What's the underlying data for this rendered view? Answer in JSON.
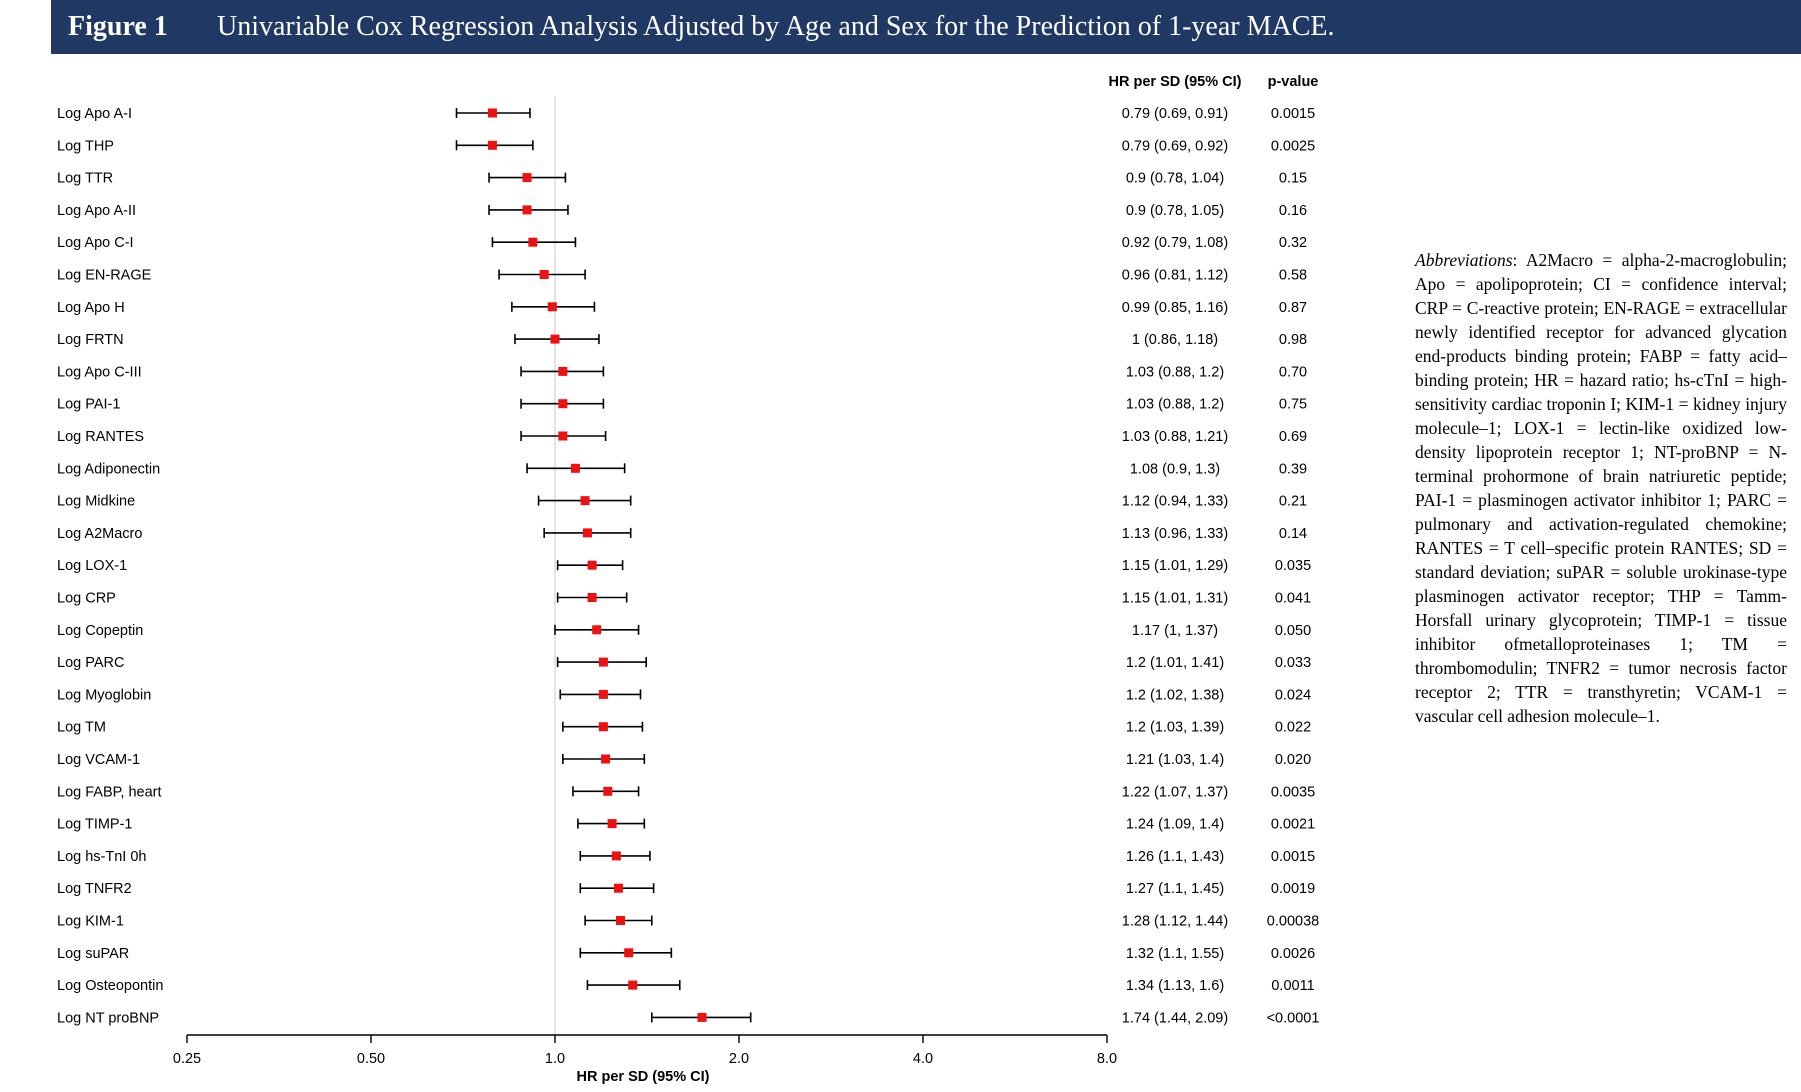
{
  "header": {
    "figure_label": "Figure 1",
    "title": "Univariable Cox Regression Analysis Adjusted by Age and Sex for the Prediction of 1-year MACE."
  },
  "table_headers": {
    "hr": "HR per SD (95% CI)",
    "p": "p-value"
  },
  "abbreviations": {
    "label": "Abbreviations",
    "text": ": A2Macro = alpha-2-macroglobulin; Apo = apolipoprotein; CI = confidence interval; CRP = C-reactive protein; EN-RAGE = extracellular newly identified receptor for advanced glycation end-products binding protein; FABP = fatty acid–binding protein; HR = hazard ratio; hs-cTnI = high-sensitivity cardiac troponin I; KIM-1 = kidney injury molecule–1; LOX-1 = lectin-like oxidized low-density lipoprotein receptor 1; NT-proBNP = N-terminal prohormone of brain natriuretic peptide; PAI-1 = plasminogen activator inhibitor 1; PARC = pulmonary and activation-regulated chemokine; RANTES = T cell–specific protein RANTES; SD = standard deviation; suPAR = soluble urokinase-type plasminogen activator receptor; THP = Tamm-Horsfall urinary glycoprotein; TIMP-1 = tissue inhibitor ofmetalloproteinases 1; TM = thrombomodulin; TNFR2 = tumor necrosis factor receptor 2; TTR = transthyretin; VCAM-1 = vascular cell adhesion molecule–1."
  },
  "colors": {
    "point": "#ee1111",
    "header_bg": "#1f3864",
    "ref_line": "#c8c8c8"
  },
  "chart_data": {
    "type": "forest",
    "xlabel": "HR per SD (95% CI)",
    "xscale": "log2",
    "xlim": [
      0.25,
      8.0
    ],
    "xticks": [
      0.25,
      0.5,
      1.0,
      2.0,
      4.0,
      8.0
    ],
    "xtick_labels": [
      "0.25",
      "0.50",
      "1.0",
      "2.0",
      "4.0",
      "8.0"
    ],
    "reference_line": 1.0,
    "rows": [
      {
        "label": "Log Apo A-I",
        "hr": 0.79,
        "lo": 0.69,
        "hi": 0.91,
        "hr_text": "0.79 (0.69, 0.91)",
        "p": "0.0015"
      },
      {
        "label": "Log THP",
        "hr": 0.79,
        "lo": 0.69,
        "hi": 0.92,
        "hr_text": "0.79 (0.69, 0.92)",
        "p": "0.0025"
      },
      {
        "label": "Log TTR",
        "hr": 0.9,
        "lo": 0.78,
        "hi": 1.04,
        "hr_text": "0.9 (0.78, 1.04)",
        "p": "0.15"
      },
      {
        "label": "Log Apo A-II",
        "hr": 0.9,
        "lo": 0.78,
        "hi": 1.05,
        "hr_text": "0.9 (0.78, 1.05)",
        "p": "0.16"
      },
      {
        "label": "Log Apo C-I",
        "hr": 0.92,
        "lo": 0.79,
        "hi": 1.08,
        "hr_text": "0.92 (0.79, 1.08)",
        "p": "0.32"
      },
      {
        "label": "Log EN-RAGE",
        "hr": 0.96,
        "lo": 0.81,
        "hi": 1.12,
        "hr_text": "0.96 (0.81, 1.12)",
        "p": "0.58"
      },
      {
        "label": "Log Apo H",
        "hr": 0.99,
        "lo": 0.85,
        "hi": 1.16,
        "hr_text": "0.99 (0.85, 1.16)",
        "p": "0.87"
      },
      {
        "label": "Log FRTN",
        "hr": 1.0,
        "lo": 0.86,
        "hi": 1.18,
        "hr_text": "1 (0.86, 1.18)",
        "p": "0.98"
      },
      {
        "label": "Log Apo C-III",
        "hr": 1.03,
        "lo": 0.88,
        "hi": 1.2,
        "hr_text": "1.03 (0.88, 1.2)",
        "p": "0.70"
      },
      {
        "label": "Log PAI-1",
        "hr": 1.03,
        "lo": 0.88,
        "hi": 1.2,
        "hr_text": "1.03 (0.88, 1.2)",
        "p": "0.75"
      },
      {
        "label": "Log RANTES",
        "hr": 1.03,
        "lo": 0.88,
        "hi": 1.21,
        "hr_text": "1.03 (0.88, 1.21)",
        "p": "0.69"
      },
      {
        "label": "Log Adiponectin",
        "hr": 1.08,
        "lo": 0.9,
        "hi": 1.3,
        "hr_text": "1.08 (0.9, 1.3)",
        "p": "0.39"
      },
      {
        "label": "Log Midkine",
        "hr": 1.12,
        "lo": 0.94,
        "hi": 1.33,
        "hr_text": "1.12 (0.94, 1.33)",
        "p": "0.21"
      },
      {
        "label": "Log A2Macro",
        "hr": 1.13,
        "lo": 0.96,
        "hi": 1.33,
        "hr_text": "1.13 (0.96, 1.33)",
        "p": "0.14"
      },
      {
        "label": "Log LOX-1",
        "hr": 1.15,
        "lo": 1.01,
        "hi": 1.29,
        "hr_text": "1.15 (1.01, 1.29)",
        "p": "0.035"
      },
      {
        "label": "Log CRP",
        "hr": 1.15,
        "lo": 1.01,
        "hi": 1.31,
        "hr_text": "1.15 (1.01, 1.31)",
        "p": "0.041"
      },
      {
        "label": "Log Copeptin",
        "hr": 1.17,
        "lo": 1.0,
        "hi": 1.37,
        "hr_text": "1.17 (1, 1.37)",
        "p": "0.050"
      },
      {
        "label": "Log PARC",
        "hr": 1.2,
        "lo": 1.01,
        "hi": 1.41,
        "hr_text": "1.2 (1.01, 1.41)",
        "p": "0.033"
      },
      {
        "label": "Log Myoglobin",
        "hr": 1.2,
        "lo": 1.02,
        "hi": 1.38,
        "hr_text": "1.2 (1.02, 1.38)",
        "p": "0.024"
      },
      {
        "label": "Log TM",
        "hr": 1.2,
        "lo": 1.03,
        "hi": 1.39,
        "hr_text": "1.2 (1.03, 1.39)",
        "p": "0.022"
      },
      {
        "label": "Log VCAM-1",
        "hr": 1.21,
        "lo": 1.03,
        "hi": 1.4,
        "hr_text": "1.21 (1.03, 1.4)",
        "p": "0.020"
      },
      {
        "label": "Log FABP, heart",
        "hr": 1.22,
        "lo": 1.07,
        "hi": 1.37,
        "hr_text": "1.22 (1.07, 1.37)",
        "p": "0.0035"
      },
      {
        "label": "Log TIMP-1",
        "hr": 1.24,
        "lo": 1.09,
        "hi": 1.4,
        "hr_text": "1.24 (1.09, 1.4)",
        "p": "0.0021"
      },
      {
        "label": "Log hs-TnI 0h",
        "hr": 1.26,
        "lo": 1.1,
        "hi": 1.43,
        "hr_text": "1.26 (1.1, 1.43)",
        "p": "0.0015"
      },
      {
        "label": "Log TNFR2",
        "hr": 1.27,
        "lo": 1.1,
        "hi": 1.45,
        "hr_text": "1.27 (1.1, 1.45)",
        "p": "0.0019"
      },
      {
        "label": "Log KIM-1",
        "hr": 1.28,
        "lo": 1.12,
        "hi": 1.44,
        "hr_text": "1.28 (1.12, 1.44)",
        "p": "0.00038"
      },
      {
        "label": "Log suPAR",
        "hr": 1.32,
        "lo": 1.1,
        "hi": 1.55,
        "hr_text": "1.32 (1.1, 1.55)",
        "p": "0.0026"
      },
      {
        "label": "Log Osteopontin",
        "hr": 1.34,
        "lo": 1.13,
        "hi": 1.6,
        "hr_text": "1.34 (1.13, 1.6)",
        "p": "0.0011"
      },
      {
        "label": "Log NT proBNP",
        "hr": 1.74,
        "lo": 1.44,
        "hi": 2.09,
        "hr_text": "1.74 (1.44, 2.09)",
        "p": "<0.0001"
      }
    ]
  }
}
